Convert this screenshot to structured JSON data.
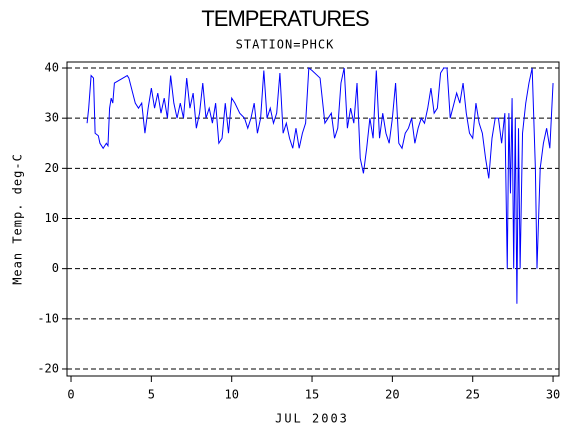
{
  "chart_data": {
    "type": "line",
    "title": "TEMPERATURES",
    "subtitle": "STATION=PHCK",
    "x_label": "JUL 2003",
    "y_label": "Mean Temp. deg-C",
    "color": "#0000ff",
    "x": [
      1.0,
      1.1,
      1.25,
      1.4,
      1.5,
      1.7,
      1.8,
      2.0,
      2.2,
      2.3,
      2.4,
      2.5,
      2.6,
      2.7,
      3.5,
      3.6,
      4.0,
      4.2,
      4.4,
      4.6,
      4.8,
      5.0,
      5.2,
      5.4,
      5.6,
      5.8,
      6.0,
      6.2,
      6.4,
      6.6,
      6.8,
      7.0,
      7.2,
      7.4,
      7.6,
      7.8,
      8.0,
      8.2,
      8.4,
      8.6,
      8.8,
      9.0,
      9.2,
      9.4,
      9.6,
      9.8,
      10.0,
      10.2,
      10.5,
      10.8,
      11.0,
      11.2,
      11.4,
      11.6,
      11.8,
      12.0,
      12.2,
      12.4,
      12.6,
      12.8,
      13.0,
      13.2,
      13.4,
      13.6,
      13.8,
      14.0,
      14.2,
      14.4,
      14.6,
      14.8,
      15.0,
      15.5,
      15.8,
      16.0,
      16.2,
      16.4,
      16.6,
      16.8,
      17.0,
      17.2,
      17.4,
      17.6,
      17.8,
      18.0,
      18.2,
      18.4,
      18.6,
      18.8,
      19.0,
      19.2,
      19.4,
      19.6,
      19.8,
      20.0,
      20.2,
      20.4,
      20.6,
      20.8,
      21.0,
      21.2,
      21.4,
      21.6,
      21.8,
      22.0,
      22.2,
      22.4,
      22.6,
      22.8,
      23.0,
      23.2,
      23.4,
      23.6,
      24.0,
      24.2,
      24.4,
      24.6,
      24.8,
      25.0,
      25.2,
      25.4,
      25.6,
      25.8,
      26.0,
      26.2,
      26.4,
      26.6,
      26.8,
      27.0,
      27.15,
      27.25,
      27.35,
      27.45,
      27.55,
      27.65,
      27.75,
      27.85,
      27.95,
      28.1,
      28.3,
      28.5,
      28.7,
      28.9,
      29.0,
      29.1,
      29.2,
      29.4,
      29.6,
      29.8,
      30.0
    ],
    "values": [
      29,
      32,
      38.5,
      38,
      27,
      26.5,
      25,
      24,
      25,
      24.5,
      32,
      34,
      33,
      37,
      38.5,
      38,
      33,
      32,
      33,
      27,
      32,
      36,
      32,
      35,
      31,
      34,
      30,
      38.5,
      33,
      30,
      33,
      30,
      38,
      32,
      35,
      28,
      31,
      37,
      30,
      32,
      29,
      33,
      25,
      26,
      33,
      27,
      34,
      33,
      31,
      30,
      28,
      30,
      33,
      27,
      30,
      39.5,
      30,
      32,
      29,
      31,
      39,
      27,
      29,
      26,
      24,
      28,
      24,
      27,
      29,
      40,
      39.5,
      38,
      29,
      30,
      31,
      26,
      28,
      37,
      40,
      28,
      32,
      29,
      37,
      22,
      19,
      24,
      30,
      26,
      39.5,
      26,
      31,
      27,
      25,
      30,
      37,
      25,
      24,
      27,
      28,
      30,
      25,
      28,
      30,
      29,
      32,
      36,
      31,
      32,
      39,
      40,
      40,
      30,
      35,
      33,
      37,
      31,
      27,
      26,
      33,
      29,
      27,
      22,
      18,
      26,
      30,
      30,
      25,
      31,
      0,
      31,
      15,
      34,
      0,
      30,
      -7,
      28,
      0,
      27,
      33,
      37,
      40,
      20,
      0,
      10,
      20,
      25,
      28,
      24,
      37
    ],
    "xlim": [
      -0.25,
      30.37
    ],
    "ylim": [
      -21.4,
      41.2
    ],
    "xticks": [
      0,
      5,
      10,
      15,
      20,
      25,
      30
    ],
    "yticks": [
      -20,
      -10,
      0,
      10,
      20,
      30,
      40
    ],
    "grid": true
  }
}
